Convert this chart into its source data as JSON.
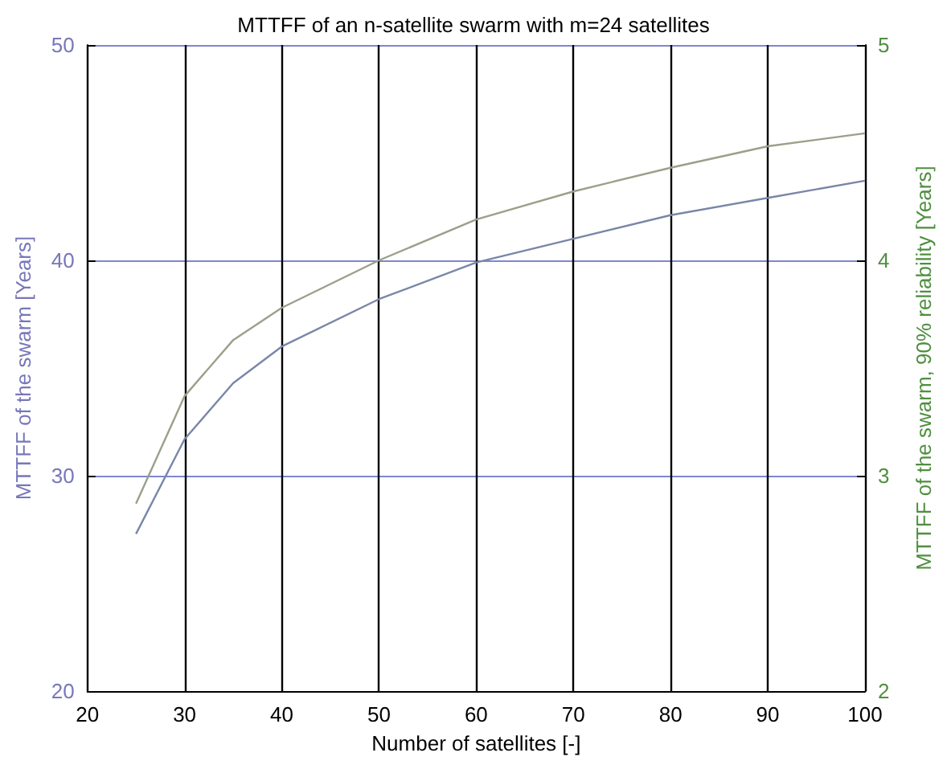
{
  "chart_data": {
    "type": "line",
    "title": "MTTFF of an n-satellite swarm with m=24 satellites",
    "xlabel": "Number of satellites [-]",
    "ylabel": "MTTFF of the swarm [Years]",
    "y2label": "MTTFF of the swarm, 90% reliability [Years]",
    "x": [
      25,
      30,
      35,
      40,
      50,
      60,
      70,
      80,
      90,
      100
    ],
    "series": [
      {
        "color": "#7a86a8",
        "values": [
          27.3,
          31.7,
          34.3,
          36.0,
          38.2,
          39.9,
          41.0,
          42.1,
          42.9,
          43.7
        ]
      },
      {
        "color": "#9aa08a",
        "axis": "y2",
        "values": [
          2.87,
          3.37,
          3.63,
          3.78,
          4.0,
          4.19,
          4.32,
          4.43,
          4.53,
          4.59
        ]
      }
    ],
    "xlim": [
      20,
      100
    ],
    "xticks": [
      20,
      30,
      40,
      50,
      60,
      70,
      80,
      90,
      100
    ],
    "ylim": [
      20,
      50
    ],
    "yticks": [
      20,
      30,
      40,
      50
    ],
    "y2lim": [
      2,
      5
    ],
    "y2ticks": [
      2,
      3,
      4,
      5
    ],
    "grid": true,
    "marker": "none",
    "line_style": "solid"
  }
}
